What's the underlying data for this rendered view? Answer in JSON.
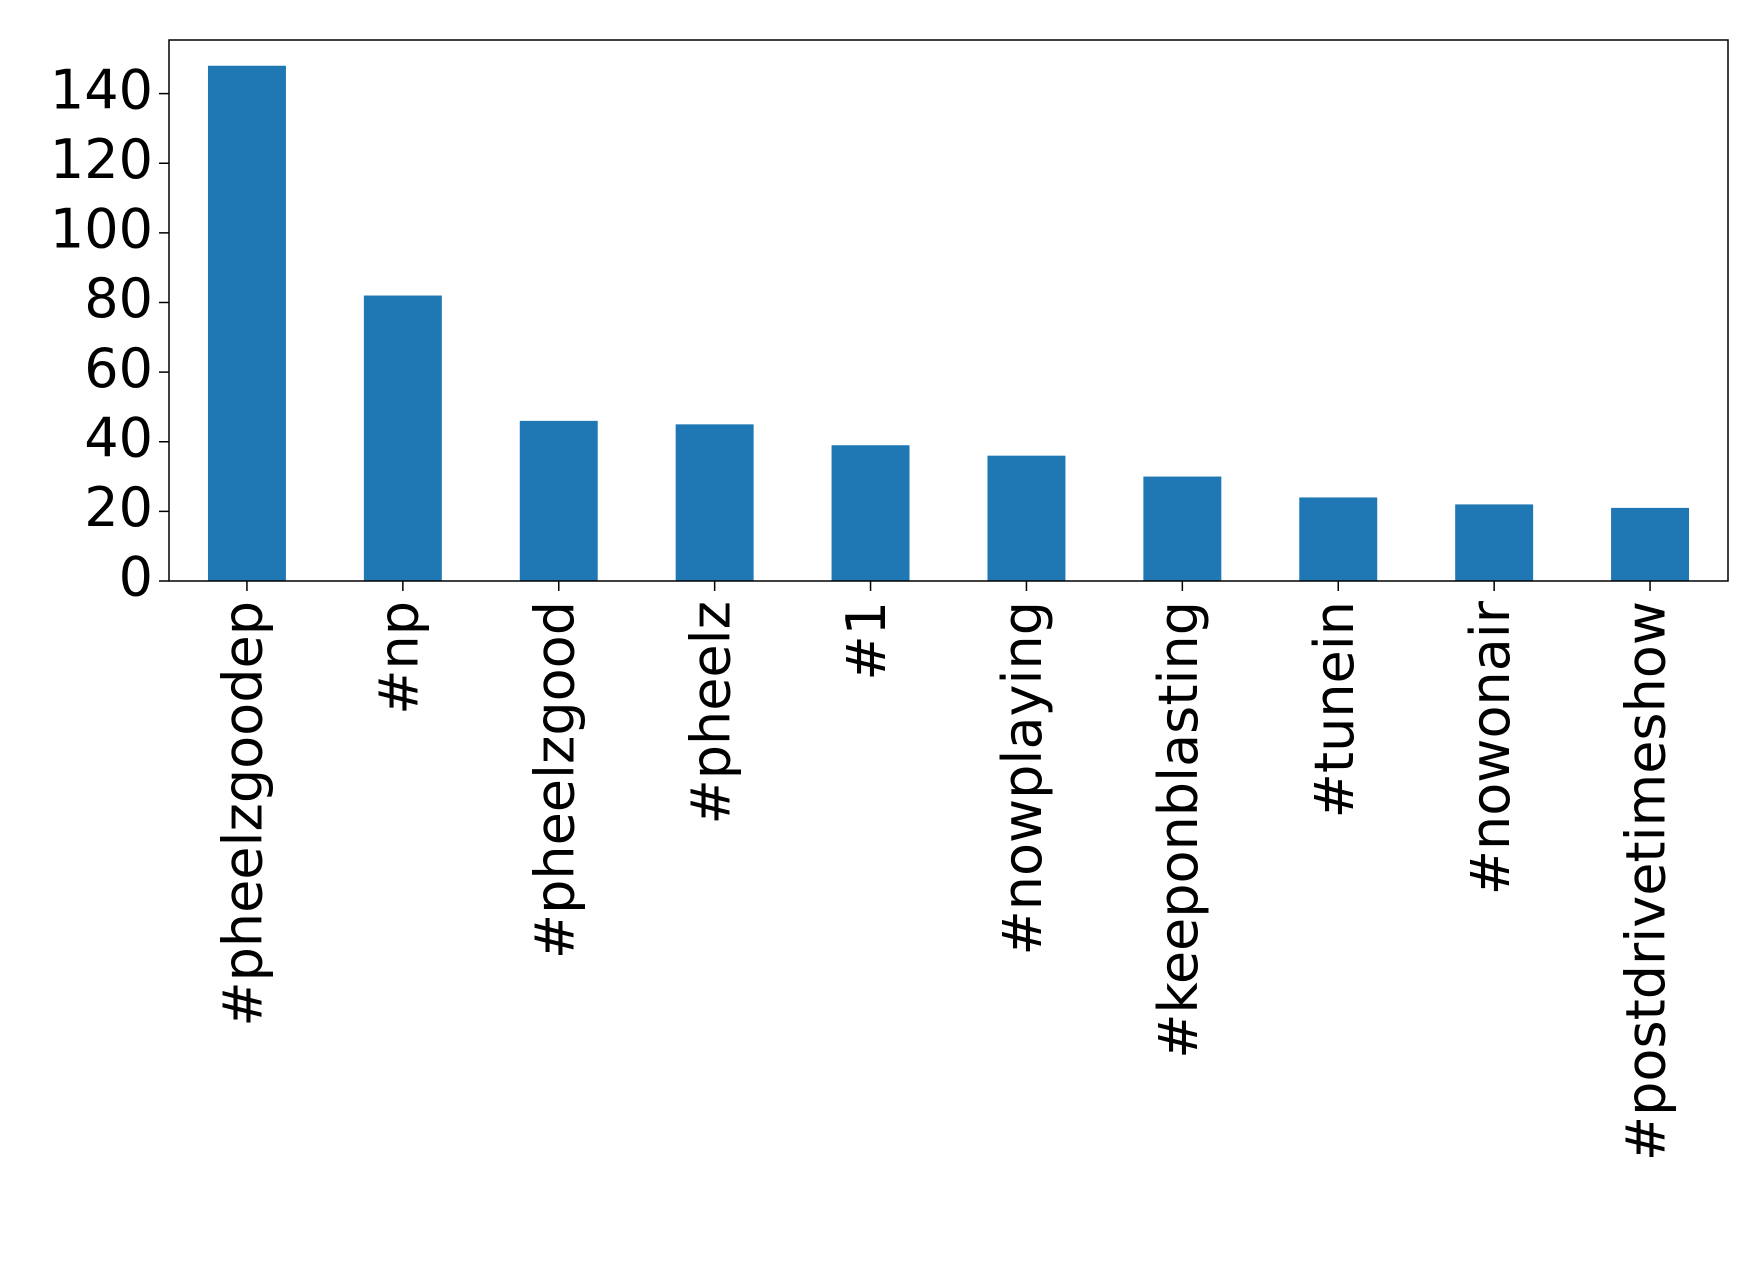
{
  "chart_data": {
    "type": "bar",
    "categories": [
      "#pheelzgoodep",
      "#np",
      "#pheelzgood",
      "#pheelz",
      "#1",
      "#nowplaying",
      "#keeponblasting",
      "#tunein",
      "#nowonair",
      "#postdrivetimeshow"
    ],
    "values": [
      148,
      82,
      46,
      45,
      39,
      36,
      30,
      24,
      22,
      21
    ],
    "color": "#1f77b4",
    "ylim": [
      0,
      155.4
    ],
    "yticks": [
      0,
      20,
      40,
      60,
      80,
      100,
      120,
      140
    ],
    "grid": false
  }
}
